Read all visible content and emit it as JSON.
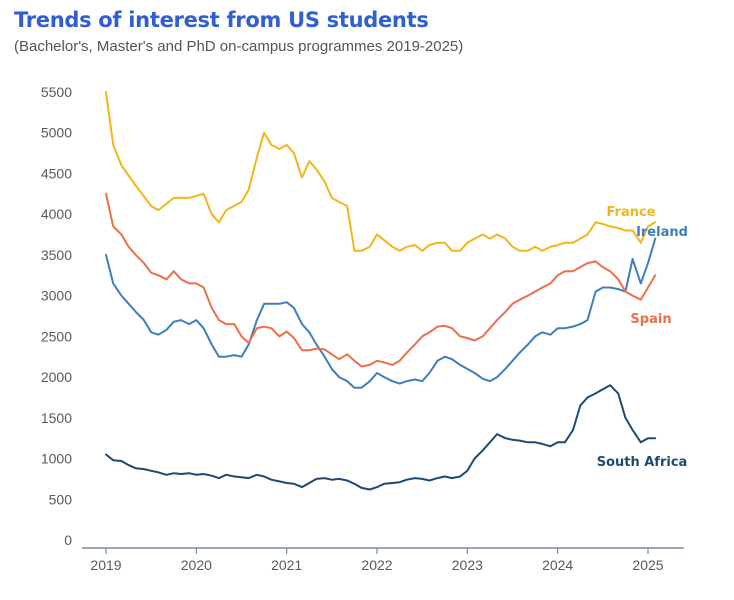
{
  "header": {
    "title": "Trends of interest from US students",
    "subtitle": "(Bachelor's, Master's and PhD on-campus programmes 2019-2025)"
  },
  "chart_data": {
    "type": "line",
    "title": "Trends of interest from US students",
    "subtitle": "(Bachelor's, Master's and PhD on-campus programmes 2019-2025)",
    "xlabel": "",
    "ylabel": "",
    "ylim": [
      0,
      5500
    ],
    "xlim": [
      2019,
      2025.1
    ],
    "yticks": [
      0,
      500,
      1000,
      1500,
      2000,
      2500,
      3000,
      3500,
      4000,
      4500,
      5000,
      5500
    ],
    "xticks": [
      2019,
      2020,
      2021,
      2022,
      2023,
      2024,
      2025
    ],
    "ytick_labels": [
      "0",
      "500",
      "1000",
      "1500",
      "2000",
      "2500",
      "3000",
      "3500",
      "4000",
      "4500",
      "5000",
      "5500"
    ],
    "xtick_labels": [
      "2019",
      "2020",
      "2021",
      "2022",
      "2023",
      "2024",
      "2025"
    ],
    "grid": false,
    "series": [
      {
        "name": "France",
        "color": "#f3b51b",
        "points": [
          [
            2019.0,
            5500
          ],
          [
            2019.08,
            4850
          ],
          [
            2019.17,
            4600
          ],
          [
            2019.33,
            4350
          ],
          [
            2019.5,
            4100
          ],
          [
            2019.58,
            4050
          ],
          [
            2019.75,
            4200
          ],
          [
            2019.92,
            4200
          ],
          [
            2020.08,
            4250
          ],
          [
            2020.17,
            4000
          ],
          [
            2020.25,
            3900
          ],
          [
            2020.33,
            4050
          ],
          [
            2020.5,
            4150
          ],
          [
            2020.58,
            4300
          ],
          [
            2020.67,
            4700
          ],
          [
            2020.75,
            5000
          ],
          [
            2020.83,
            4850
          ],
          [
            2020.92,
            4800
          ],
          [
            2021.0,
            4850
          ],
          [
            2021.08,
            4750
          ],
          [
            2021.17,
            4450
          ],
          [
            2021.25,
            4650
          ],
          [
            2021.33,
            4550
          ],
          [
            2021.42,
            4400
          ],
          [
            2021.5,
            4200
          ],
          [
            2021.58,
            4150
          ],
          [
            2021.67,
            4100
          ],
          [
            2021.75,
            3550
          ],
          [
            2021.83,
            3550
          ],
          [
            2021.92,
            3600
          ],
          [
            2022.0,
            3750
          ],
          [
            2022.08,
            3680
          ],
          [
            2022.17,
            3600
          ],
          [
            2022.25,
            3550
          ],
          [
            2022.33,
            3600
          ],
          [
            2022.42,
            3620
          ],
          [
            2022.5,
            3550
          ],
          [
            2022.58,
            3620
          ],
          [
            2022.67,
            3650
          ],
          [
            2022.75,
            3650
          ],
          [
            2022.83,
            3550
          ],
          [
            2022.92,
            3550
          ],
          [
            2023.0,
            3650
          ],
          [
            2023.08,
            3700
          ],
          [
            2023.17,
            3750
          ],
          [
            2023.25,
            3700
          ],
          [
            2023.33,
            3750
          ],
          [
            2023.42,
            3700
          ],
          [
            2023.5,
            3600
          ],
          [
            2023.58,
            3550
          ],
          [
            2023.67,
            3550
          ],
          [
            2023.75,
            3600
          ],
          [
            2023.83,
            3550
          ],
          [
            2023.92,
            3600
          ],
          [
            2024.0,
            3620
          ],
          [
            2024.08,
            3650
          ],
          [
            2024.17,
            3650
          ],
          [
            2024.25,
            3700
          ],
          [
            2024.33,
            3750
          ],
          [
            2024.42,
            3900
          ],
          [
            2024.5,
            3880
          ],
          [
            2024.58,
            3850
          ],
          [
            2024.67,
            3830
          ],
          [
            2024.75,
            3800
          ],
          [
            2024.83,
            3800
          ],
          [
            2024.92,
            3650
          ],
          [
            2025.0,
            3850
          ],
          [
            2025.08,
            3900
          ]
        ]
      },
      {
        "name": "Ireland",
        "color": "#3d7ebf",
        "points": [
          [
            2019.0,
            3500
          ],
          [
            2019.08,
            3150
          ],
          [
            2019.17,
            3000
          ],
          [
            2019.33,
            2800
          ],
          [
            2019.42,
            2700
          ],
          [
            2019.5,
            2550
          ],
          [
            2019.58,
            2520
          ],
          [
            2019.67,
            2580
          ],
          [
            2019.75,
            2680
          ],
          [
            2019.83,
            2700
          ],
          [
            2019.92,
            2650
          ],
          [
            2020.0,
            2700
          ],
          [
            2020.08,
            2600
          ],
          [
            2020.17,
            2400
          ],
          [
            2020.25,
            2250
          ],
          [
            2020.33,
            2250
          ],
          [
            2020.42,
            2270
          ],
          [
            2020.5,
            2250
          ],
          [
            2020.58,
            2400
          ],
          [
            2020.67,
            2700
          ],
          [
            2020.75,
            2900
          ],
          [
            2020.83,
            2900
          ],
          [
            2020.92,
            2900
          ],
          [
            2021.0,
            2920
          ],
          [
            2021.08,
            2850
          ],
          [
            2021.17,
            2650
          ],
          [
            2021.25,
            2550
          ],
          [
            2021.33,
            2400
          ],
          [
            2021.42,
            2250
          ],
          [
            2021.5,
            2100
          ],
          [
            2021.58,
            2000
          ],
          [
            2021.67,
            1950
          ],
          [
            2021.75,
            1870
          ],
          [
            2021.83,
            1870
          ],
          [
            2021.92,
            1950
          ],
          [
            2022.0,
            2050
          ],
          [
            2022.08,
            2000
          ],
          [
            2022.17,
            1950
          ],
          [
            2022.25,
            1920
          ],
          [
            2022.33,
            1950
          ],
          [
            2022.42,
            1970
          ],
          [
            2022.5,
            1950
          ],
          [
            2022.58,
            2050
          ],
          [
            2022.67,
            2200
          ],
          [
            2022.75,
            2250
          ],
          [
            2022.83,
            2220
          ],
          [
            2022.92,
            2150
          ],
          [
            2023.0,
            2100
          ],
          [
            2023.08,
            2050
          ],
          [
            2023.17,
            1980
          ],
          [
            2023.25,
            1950
          ],
          [
            2023.33,
            2000
          ],
          [
            2023.42,
            2100
          ],
          [
            2023.5,
            2200
          ],
          [
            2023.58,
            2300
          ],
          [
            2023.67,
            2400
          ],
          [
            2023.75,
            2500
          ],
          [
            2023.83,
            2550
          ],
          [
            2023.92,
            2520
          ],
          [
            2024.0,
            2600
          ],
          [
            2024.08,
            2600
          ],
          [
            2024.17,
            2620
          ],
          [
            2024.25,
            2650
          ],
          [
            2024.33,
            2700
          ],
          [
            2024.42,
            3050
          ],
          [
            2024.5,
            3100
          ],
          [
            2024.58,
            3100
          ],
          [
            2024.67,
            3080
          ],
          [
            2024.75,
            3050
          ],
          [
            2024.83,
            3450
          ],
          [
            2024.92,
            3150
          ],
          [
            2025.0,
            3400
          ],
          [
            2025.08,
            3700
          ]
        ]
      },
      {
        "name": "Spain",
        "color": "#ec6f4a",
        "points": [
          [
            2019.0,
            4250
          ],
          [
            2019.08,
            3850
          ],
          [
            2019.17,
            3750
          ],
          [
            2019.25,
            3600
          ],
          [
            2019.33,
            3500
          ],
          [
            2019.42,
            3400
          ],
          [
            2019.5,
            3280
          ],
          [
            2019.58,
            3250
          ],
          [
            2019.67,
            3200
          ],
          [
            2019.75,
            3300
          ],
          [
            2019.83,
            3200
          ],
          [
            2019.92,
            3150
          ],
          [
            2020.0,
            3150
          ],
          [
            2020.08,
            3100
          ],
          [
            2020.17,
            2850
          ],
          [
            2020.25,
            2700
          ],
          [
            2020.33,
            2650
          ],
          [
            2020.42,
            2650
          ],
          [
            2020.5,
            2500
          ],
          [
            2020.58,
            2420
          ],
          [
            2020.67,
            2600
          ],
          [
            2020.75,
            2620
          ],
          [
            2020.83,
            2600
          ],
          [
            2020.92,
            2500
          ],
          [
            2021.0,
            2560
          ],
          [
            2021.08,
            2480
          ],
          [
            2021.17,
            2330
          ],
          [
            2021.25,
            2330
          ],
          [
            2021.33,
            2350
          ],
          [
            2021.42,
            2340
          ],
          [
            2021.5,
            2280
          ],
          [
            2021.58,
            2220
          ],
          [
            2021.67,
            2280
          ],
          [
            2021.75,
            2200
          ],
          [
            2021.83,
            2130
          ],
          [
            2021.92,
            2150
          ],
          [
            2022.0,
            2200
          ],
          [
            2022.08,
            2180
          ],
          [
            2022.17,
            2150
          ],
          [
            2022.25,
            2200
          ],
          [
            2022.33,
            2300
          ],
          [
            2022.42,
            2400
          ],
          [
            2022.5,
            2500
          ],
          [
            2022.58,
            2550
          ],
          [
            2022.67,
            2620
          ],
          [
            2022.75,
            2630
          ],
          [
            2022.83,
            2600
          ],
          [
            2022.92,
            2500
          ],
          [
            2023.0,
            2480
          ],
          [
            2023.08,
            2450
          ],
          [
            2023.17,
            2500
          ],
          [
            2023.25,
            2600
          ],
          [
            2023.33,
            2700
          ],
          [
            2023.42,
            2800
          ],
          [
            2023.5,
            2900
          ],
          [
            2023.58,
            2950
          ],
          [
            2023.67,
            3000
          ],
          [
            2023.75,
            3050
          ],
          [
            2023.83,
            3100
          ],
          [
            2023.92,
            3150
          ],
          [
            2024.0,
            3250
          ],
          [
            2024.08,
            3300
          ],
          [
            2024.17,
            3300
          ],
          [
            2024.25,
            3350
          ],
          [
            2024.33,
            3400
          ],
          [
            2024.42,
            3420
          ],
          [
            2024.5,
            3350
          ],
          [
            2024.58,
            3300
          ],
          [
            2024.67,
            3200
          ],
          [
            2024.75,
            3050
          ],
          [
            2024.83,
            3000
          ],
          [
            2024.92,
            2950
          ],
          [
            2025.0,
            3100
          ],
          [
            2025.08,
            3250
          ]
        ]
      },
      {
        "name": "South Africa",
        "color": "#1e4a72",
        "points": [
          [
            2019.0,
            1050
          ],
          [
            2019.08,
            980
          ],
          [
            2019.17,
            970
          ],
          [
            2019.25,
            920
          ],
          [
            2019.33,
            880
          ],
          [
            2019.42,
            870
          ],
          [
            2019.5,
            850
          ],
          [
            2019.58,
            830
          ],
          [
            2019.67,
            800
          ],
          [
            2019.75,
            820
          ],
          [
            2019.83,
            810
          ],
          [
            2019.92,
            820
          ],
          [
            2020.0,
            800
          ],
          [
            2020.08,
            810
          ],
          [
            2020.17,
            790
          ],
          [
            2020.25,
            760
          ],
          [
            2020.33,
            800
          ],
          [
            2020.42,
            780
          ],
          [
            2020.5,
            770
          ],
          [
            2020.58,
            760
          ],
          [
            2020.67,
            800
          ],
          [
            2020.75,
            780
          ],
          [
            2020.83,
            740
          ],
          [
            2020.92,
            720
          ],
          [
            2021.0,
            700
          ],
          [
            2021.08,
            690
          ],
          [
            2021.17,
            650
          ],
          [
            2021.25,
            700
          ],
          [
            2021.33,
            750
          ],
          [
            2021.42,
            760
          ],
          [
            2021.5,
            740
          ],
          [
            2021.58,
            750
          ],
          [
            2021.67,
            730
          ],
          [
            2021.75,
            690
          ],
          [
            2021.83,
            640
          ],
          [
            2021.92,
            620
          ],
          [
            2022.0,
            650
          ],
          [
            2022.08,
            690
          ],
          [
            2022.17,
            700
          ],
          [
            2022.25,
            710
          ],
          [
            2022.33,
            740
          ],
          [
            2022.42,
            760
          ],
          [
            2022.5,
            750
          ],
          [
            2022.58,
            730
          ],
          [
            2022.67,
            760
          ],
          [
            2022.75,
            780
          ],
          [
            2022.83,
            760
          ],
          [
            2022.92,
            780
          ],
          [
            2023.0,
            850
          ],
          [
            2023.08,
            1000
          ],
          [
            2023.17,
            1100
          ],
          [
            2023.25,
            1200
          ],
          [
            2023.33,
            1300
          ],
          [
            2023.42,
            1250
          ],
          [
            2023.5,
            1230
          ],
          [
            2023.58,
            1220
          ],
          [
            2023.67,
            1200
          ],
          [
            2023.75,
            1200
          ],
          [
            2023.83,
            1180
          ],
          [
            2023.92,
            1150
          ],
          [
            2024.0,
            1200
          ],
          [
            2024.08,
            1200
          ],
          [
            2024.17,
            1350
          ],
          [
            2024.25,
            1650
          ],
          [
            2024.33,
            1750
          ],
          [
            2024.42,
            1800
          ],
          [
            2024.5,
            1850
          ],
          [
            2024.58,
            1900
          ],
          [
            2024.67,
            1800
          ],
          [
            2024.75,
            1500
          ],
          [
            2024.83,
            1350
          ],
          [
            2024.92,
            1200
          ],
          [
            2025.0,
            1250
          ],
          [
            2025.08,
            1250
          ]
        ]
      }
    ],
    "annotations": [
      {
        "text": "France",
        "series": "France"
      },
      {
        "text": "Ireland",
        "series": "Ireland"
      },
      {
        "text": "Spain",
        "series": "Spain"
      },
      {
        "text": "South Africa",
        "series": "South Africa"
      }
    ],
    "axis_color": "#7a8aa8"
  }
}
